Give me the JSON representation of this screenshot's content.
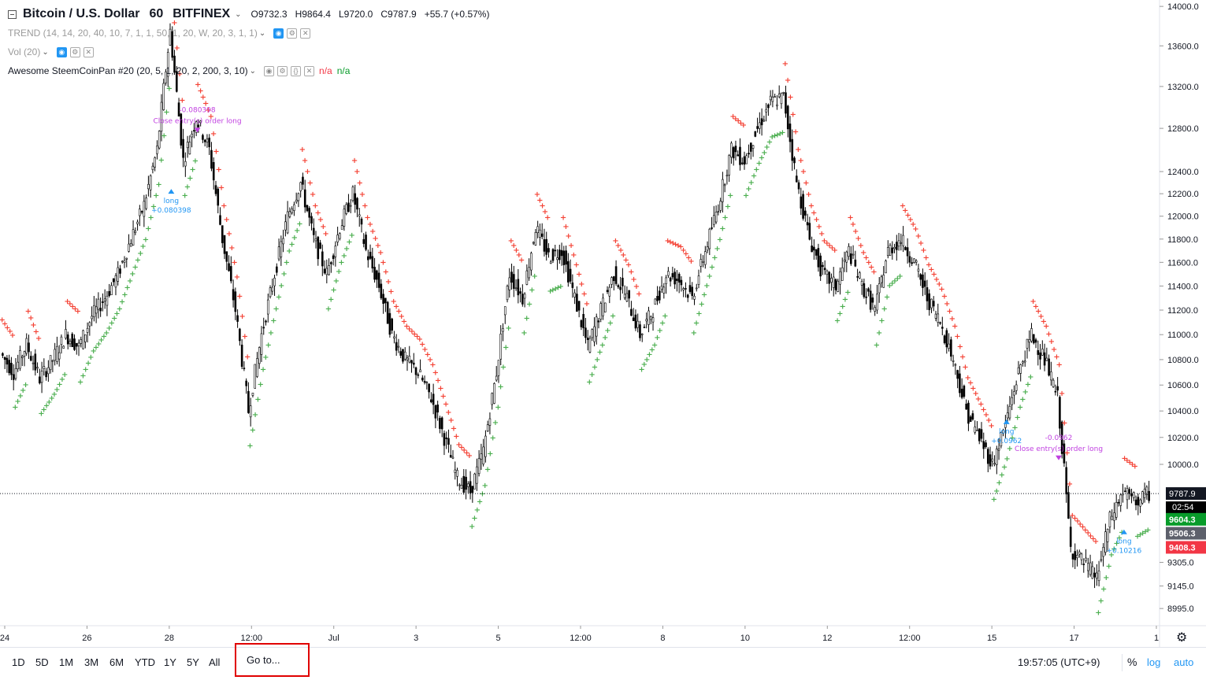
{
  "header": {
    "symbol": "Bitcoin / U.S. Dollar",
    "interval": "60",
    "exchange": "BITFINEX",
    "open": "O9732.3",
    "high": "H9864.4",
    "low": "L9720.0",
    "close": "C9787.9",
    "change": "+55.7 (+0.57%)"
  },
  "indicators": [
    {
      "label": "TREND (14, 14, 20, 40, 10, 7, 1, 1, 50, 1, 20, W, 20, 3, 1, 1)"
    },
    {
      "label": "Vol (20)"
    },
    {
      "label": "Awesome SteemCoinPan #20 (20, 5, 1, 20, 2, 200, 3, 10)",
      "value1": "n/a",
      "value2": "n/a"
    }
  ],
  "colors": {
    "up_cross": "#4caf50",
    "down_cross": "#f44336",
    "accent": "#2196f3",
    "signal": "#c040e0"
  },
  "chart_data": {
    "type": "line",
    "series": [
      {
        "values": [
          10850,
          10700,
          10920,
          10650,
          10800,
          11000,
          10900,
          11150,
          11300,
          11500,
          11800,
          12100,
          12600,
          13750,
          12500,
          12900,
          12600,
          11800,
          11200,
          10400,
          11000,
          11500,
          12000,
          12300,
          11800,
          11500,
          11900,
          12200,
          11700,
          11400,
          11000,
          10800,
          10700,
          10500,
          10200,
          9900,
          9800,
          10100,
          10700,
          11500,
          11300,
          11900,
          11650,
          11700,
          11300,
          10900,
          11200,
          11500,
          11300,
          11000,
          11200,
          11500,
          11450,
          11300,
          11700,
          12100,
          12600,
          12500,
          12800,
          13050,
          13100,
          12300,
          11800,
          11500,
          11400,
          11700,
          11400,
          11200,
          11700,
          11800,
          11600,
          11300,
          11100,
          10800,
          10400,
          10200,
          10000,
          10300,
          10700,
          11000,
          10800,
          10500,
          9400,
          9300,
          9200,
          9600,
          9800,
          9730,
          9788
        ]
      }
    ],
    "x_tick_labels": [
      "24",
      "26",
      "28",
      "12:00",
      "Jul",
      "3",
      "5",
      "12:00",
      "8",
      "10",
      "12",
      "12:00",
      "15",
      "17",
      "1"
    ],
    "y_tick_labels": [
      "14000.0",
      "13600.0",
      "13200.0",
      "12800.0",
      "12400.0",
      "12200.0",
      "12000.0",
      "11800.0",
      "11600.0",
      "11400.0",
      "11200.0",
      "11000.0",
      "10800.0",
      "10600.0",
      "10400.0",
      "10200.0",
      "10000.0",
      "9787.9",
      "9604.3",
      "9506.3",
      "9408.3",
      "9305.0",
      "9145.0",
      "8995.0"
    ],
    "y_log_scale": true,
    "ylim": [
      8900,
      14100
    ],
    "last_price": "9787.9",
    "countdown": "02:54",
    "price_tags": [
      {
        "value": "9604.3",
        "color": "#089c2a"
      },
      {
        "value": "9506.3",
        "color": "#5d606b"
      },
      {
        "value": "9408.3",
        "color": "#f23645"
      }
    ],
    "annotations": [
      {
        "text": "long",
        "sub": "+0.080398",
        "color": "#2196f3",
        "y": 12200,
        "xi": 13
      },
      {
        "text": "-0.080398",
        "sub": "Close entry(s) order long",
        "color": "#c040e0",
        "y": 12850,
        "xi": 15
      },
      {
        "text": "long",
        "sub": "+0.0962",
        "color": "#2196f3",
        "y": 10300,
        "xi": 77
      },
      {
        "text": "-0.0962",
        "sub": "Close entry(s) order long",
        "color": "#c040e0",
        "y": 10100,
        "xi": 81
      },
      {
        "text": "long",
        "sub": "+0.10216",
        "color": "#2196f3",
        "y": 9500,
        "xi": 86
      }
    ]
  },
  "bottom": {
    "timeframes": [
      "1D",
      "5D",
      "1M",
      "3M",
      "6M",
      "YTD",
      "1Y",
      "5Y",
      "All"
    ],
    "goto": "Go to...",
    "clock": "19:57:05 (UTC+9)",
    "percent": "%",
    "log": "log",
    "auto": "auto"
  }
}
